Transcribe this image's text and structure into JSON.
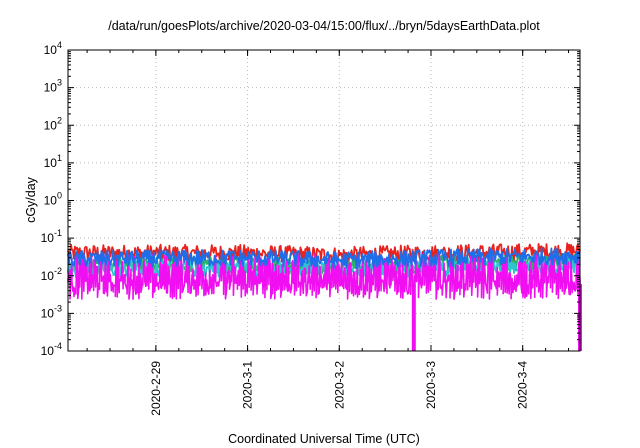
{
  "chart_data": {
    "type": "line",
    "title": "/data/run/goesPlots/archive/2020-03-04/15:00/flux/../bryn/5daysEarthData.plot",
    "xlabel": "Coordinated Universal Time (UTC)",
    "ylabel": "cGy/day",
    "y_scale": "log",
    "ylim": [
      0.0001,
      10000
    ],
    "xlim": [
      "2020-02-28T01:00",
      "2020-03-04T15:00"
    ],
    "x_ticks": [
      "2020-2-29",
      "2020-3-1",
      "2020-3-2",
      "2020-3-3",
      "2020-3-4"
    ],
    "y_ticks": [
      {
        "value": 0.0001,
        "mantissa": "10",
        "exp": "-4"
      },
      {
        "value": 0.001,
        "mantissa": "10",
        "exp": "-3"
      },
      {
        "value": 0.01,
        "mantissa": "10",
        "exp": "-2"
      },
      {
        "value": 0.1,
        "mantissa": "10",
        "exp": "-1"
      },
      {
        "value": 1,
        "mantissa": "10",
        "exp": "0"
      },
      {
        "value": 10,
        "mantissa": "10",
        "exp": "1"
      },
      {
        "value": 100,
        "mantissa": "10",
        "exp": "2"
      },
      {
        "value": 1000,
        "mantissa": "10",
        "exp": "3"
      },
      {
        "value": 10000,
        "mantissa": "10",
        "exp": "4"
      }
    ],
    "grid": true,
    "legend": "none",
    "series": [
      {
        "color": "#e8231e",
        "x": [
          "2020-02-28T01:00",
          "2020-03-01T00:00",
          "2020-03-02T00:00",
          "2020-03-03T00:00",
          "2020-03-04T15:00"
        ],
        "values": [
          0.04,
          0.04,
          0.035,
          0.04,
          0.045
        ]
      },
      {
        "color": "#29b36a",
        "x": [
          "2020-02-28T01:00",
          "2020-03-01T00:00",
          "2020-03-02T00:00",
          "2020-03-03T00:00",
          "2020-03-04T15:00"
        ],
        "values": [
          0.018,
          0.02,
          0.017,
          0.02,
          0.025
        ]
      },
      {
        "color": "#2fc5d0",
        "x": [
          "2020-02-28T01:00",
          "2020-03-01T00:00",
          "2020-03-02T00:00",
          "2020-03-03T00:00",
          "2020-03-04T15:00"
        ],
        "values": [
          0.015,
          0.016,
          0.014,
          0.016,
          0.02
        ]
      },
      {
        "color": "#1d6ee8",
        "x": [
          "2020-02-28T01:00",
          "2020-03-01T00:00",
          "2020-03-02T00:00",
          "2020-03-03T00:00",
          "2020-03-04T15:00"
        ],
        "values": [
          0.028,
          0.03,
          0.026,
          0.03,
          0.034
        ]
      },
      {
        "color": "#f00ff0",
        "x": [
          "2020-02-28T01:00",
          "2020-03-01T00:00",
          "2020-03-02T00:00",
          "2020-03-02T19:30",
          "2020-03-03T00:00",
          "2020-03-04T15:00"
        ],
        "values": [
          0.006,
          0.006,
          0.006,
          0.0001,
          0.006,
          0.0001
        ]
      }
    ]
  }
}
